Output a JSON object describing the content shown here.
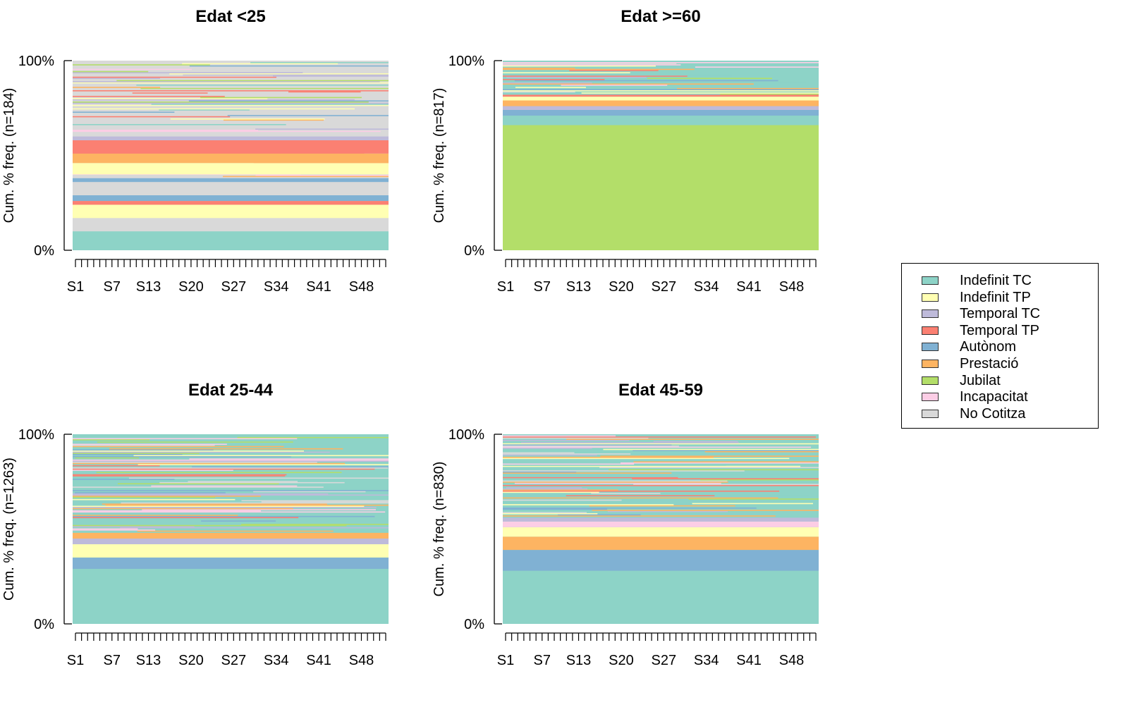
{
  "colors": {
    "Indefinit TC": "#8DD3C7",
    "Indefinit TP": "#FFFFB3",
    "Temporal TC": "#BEBADA",
    "Temporal TP": "#FB8072",
    "Autònom": "#80B1D3",
    "Prestació": "#FDB462",
    "Jubilat": "#B3DE69",
    "Incapacitat": "#FCCDE5",
    "No Cotitza": "#D9D9D9"
  },
  "chart_data": [
    {
      "type": "area",
      "title": "Edat <25",
      "ylabel": "Cum. % freq. (n=184)",
      "ylim": [
        "0%",
        "100%"
      ],
      "x_ticks_count": 52,
      "x_tick_labels": [
        "S1",
        "S7",
        "S13",
        "S20",
        "S27",
        "S34",
        "S41",
        "S48"
      ],
      "bands": [
        {
          "category": "Indefinit TC",
          "from": 0,
          "to": 10
        },
        {
          "category": "No Cotitza",
          "from": 10,
          "to": 17
        },
        {
          "category": "Indefinit TP",
          "from": 17,
          "to": 24
        },
        {
          "category": "Temporal TP",
          "from": 24,
          "to": 26
        },
        {
          "category": "Autònom",
          "from": 26,
          "to": 29
        },
        {
          "category": "No Cotitza",
          "from": 29,
          "to": 36
        },
        {
          "category": "Autònom",
          "from": 36,
          "to": 38
        },
        {
          "category": "Indefinit TP",
          "from": 40,
          "to": 46
        },
        {
          "category": "Prestació",
          "from": 46,
          "to": 51
        },
        {
          "category": "Temporal TP",
          "from": 51,
          "to": 58
        },
        {
          "category": "Temporal TC",
          "from": 58,
          "to": 60
        }
      ],
      "noise_from": 38,
      "base_category": "No Cotitza",
      "density_start": 0.35,
      "density_end": 0.9
    },
    {
      "type": "area",
      "title": "Edat >=60",
      "ylabel": "Cum. % freq. (n=817)",
      "ylim": [
        "0%",
        "100%"
      ],
      "x_ticks_count": 52,
      "x_tick_labels": [
        "S1",
        "S7",
        "S13",
        "S20",
        "S27",
        "S34",
        "S41",
        "S48"
      ],
      "bands": [
        {
          "category": "Jubilat",
          "from": 0,
          "to": 66
        },
        {
          "category": "Indefinit TC",
          "from": 66,
          "to": 71
        },
        {
          "category": "Autònom",
          "from": 71,
          "to": 74
        },
        {
          "category": "Temporal TC",
          "from": 74,
          "to": 76
        },
        {
          "category": "Prestació",
          "from": 76,
          "to": 79
        },
        {
          "category": "Indefinit TP",
          "from": 79,
          "to": 81
        },
        {
          "category": "Temporal TP",
          "from": 81,
          "to": 82
        }
      ],
      "noise_from": 82,
      "base_category": "Indefinit TC",
      "density_start": 0.8,
      "density_end": 0.95
    },
    {
      "type": "area",
      "title": "Edat 25-44",
      "ylabel": "Cum. % freq. (n=1263)",
      "ylim": [
        "0%",
        "100%"
      ],
      "x_ticks_count": 52,
      "x_tick_labels": [
        "S1",
        "S7",
        "S13",
        "S20",
        "S27",
        "S34",
        "S41",
        "S48"
      ],
      "bands": [
        {
          "category": "Indefinit TC",
          "from": 0,
          "to": 29
        },
        {
          "category": "Autònom",
          "from": 29,
          "to": 35
        },
        {
          "category": "Indefinit TP",
          "from": 35,
          "to": 42
        },
        {
          "category": "Temporal TC",
          "from": 42,
          "to": 45
        },
        {
          "category": "Prestació",
          "from": 45,
          "to": 48
        }
      ],
      "noise_from": 48,
      "base_category": "Indefinit TC",
      "density_start": 0.85,
      "density_end": 0.95
    },
    {
      "type": "area",
      "title": "Edat 45-59",
      "ylabel": "Cum. % freq. (n=830)",
      "ylim": [
        "0%",
        "100%"
      ],
      "x_ticks_count": 52,
      "x_tick_labels": [
        "S1",
        "S7",
        "S13",
        "S20",
        "S27",
        "S34",
        "S41",
        "S48"
      ],
      "bands": [
        {
          "category": "Indefinit TC",
          "from": 0,
          "to": 28
        },
        {
          "category": "Autònom",
          "from": 28,
          "to": 39
        },
        {
          "category": "Prestació",
          "from": 39,
          "to": 46
        },
        {
          "category": "Indefinit TP",
          "from": 46,
          "to": 51
        },
        {
          "category": "Incapacitat",
          "from": 51,
          "to": 54
        },
        {
          "category": "Temporal TC",
          "from": 54,
          "to": 56
        }
      ],
      "noise_from": 56,
      "base_category": "Indefinit TC",
      "density_start": 0.85,
      "density_end": 0.95
    }
  ],
  "legend": {
    "items": [
      {
        "label": "Indefinit TC",
        "color": "#8DD3C7"
      },
      {
        "label": "Indefinit TP",
        "color": "#FFFFB3"
      },
      {
        "label": "Temporal TC",
        "color": "#BEBADA"
      },
      {
        "label": "Temporal TP",
        "color": "#FB8072"
      },
      {
        "label": "Autònom",
        "color": "#80B1D3"
      },
      {
        "label": "Prestació",
        "color": "#FDB462"
      },
      {
        "label": "Jubilat",
        "color": "#B3DE69"
      },
      {
        "label": "Incapacitat",
        "color": "#FCCDE5"
      },
      {
        "label": "No Cotitza",
        "color": "#D9D9D9"
      }
    ]
  }
}
